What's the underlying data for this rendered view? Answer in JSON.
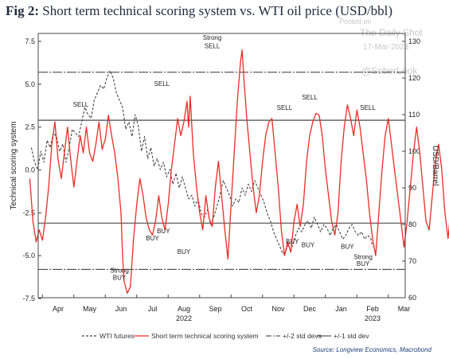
{
  "figure": {
    "label": "Fig 2:",
    "title": "Short term technical scoring system vs. WTI oil price (USD/bbl)",
    "source": "Source: Longview Economics, Macrobond"
  },
  "watermark": {
    "posted_on": "Posted on",
    "site": "The Daily Shot",
    "date": "17-Mar-2023",
    "handle": "@SoberLook"
  },
  "chart_data": {
    "type": "line",
    "ylabel_left": "Technical scoring system",
    "ylabel_right": "USD/Barrel",
    "ylim_left": [
      -7.5,
      7.5
    ],
    "yticks_left": [
      "7.5",
      "5.0",
      "2.5",
      "0.0",
      "-2.5",
      "-5.0",
      "-7.5"
    ],
    "ylim_right": [
      60,
      130
    ],
    "yticks_right": [
      "130",
      "120",
      "110",
      "100",
      "90",
      "80",
      "70",
      "60"
    ],
    "xticks": [
      "Apr",
      "May",
      "Jun",
      "Jul",
      "Aug",
      "Sep",
      "Oct",
      "Nov",
      "Dec",
      "Jan",
      "Feb",
      "Mar"
    ],
    "year_labels": [
      {
        "label": "2022",
        "under": "Aug"
      },
      {
        "label": "2023",
        "under": "Feb"
      }
    ],
    "x_unit": "month index from Mar 2022 (Apr = 1)",
    "reference_lines": [
      {
        "name": "+/-2 std devs",
        "values": [
          5.7,
          -5.8
        ],
        "style": "dash-dot"
      },
      {
        "name": "+/-1 std dev",
        "values": [
          2.9,
          -3.1
        ],
        "style": "solid"
      }
    ],
    "series": [
      {
        "name": "WTI futures",
        "axis": "right",
        "color": "#444444",
        "style": "dashed",
        "points": [
          [
            0.15,
            101
          ],
          [
            0.25,
            97
          ],
          [
            0.35,
            95
          ],
          [
            0.45,
            100
          ],
          [
            0.55,
            97
          ],
          [
            0.65,
            103
          ],
          [
            0.75,
            101
          ],
          [
            0.85,
            105
          ],
          [
            0.95,
            104
          ],
          [
            1.05,
            100
          ],
          [
            1.15,
            102
          ],
          [
            1.25,
            97
          ],
          [
            1.35,
            101
          ],
          [
            1.45,
            106
          ],
          [
            1.55,
            105
          ],
          [
            1.65,
            104
          ],
          [
            1.75,
            108
          ],
          [
            1.85,
            112
          ],
          [
            1.95,
            110
          ],
          [
            2.05,
            109
          ],
          [
            2.15,
            114
          ],
          [
            2.25,
            116
          ],
          [
            2.35,
            118
          ],
          [
            2.45,
            117
          ],
          [
            2.55,
            120
          ],
          [
            2.65,
            122
          ],
          [
            2.75,
            120
          ],
          [
            2.85,
            116
          ],
          [
            2.95,
            114
          ],
          [
            3.05,
            112
          ],
          [
            3.15,
            106
          ],
          [
            3.25,
            108
          ],
          [
            3.35,
            104
          ],
          [
            3.45,
            110
          ],
          [
            3.55,
            107
          ],
          [
            3.65,
            100
          ],
          [
            3.75,
            104
          ],
          [
            3.85,
            98
          ],
          [
            3.95,
            101
          ],
          [
            4.05,
            96
          ],
          [
            4.15,
            98
          ],
          [
            4.25,
            95
          ],
          [
            4.35,
            97
          ],
          [
            4.45,
            93
          ],
          [
            4.55,
            95
          ],
          [
            4.65,
            91
          ],
          [
            4.75,
            94
          ],
          [
            4.85,
            90
          ],
          [
            4.95,
            93
          ],
          [
            5.05,
            90
          ],
          [
            5.15,
            87
          ],
          [
            5.25,
            88
          ],
          [
            5.35,
            85
          ],
          [
            5.45,
            87
          ],
          [
            5.55,
            83
          ],
          [
            5.65,
            82
          ],
          [
            5.75,
            84
          ],
          [
            5.85,
            80
          ],
          [
            5.95,
            82
          ],
          [
            6.05,
            85
          ],
          [
            6.15,
            88
          ],
          [
            6.25,
            92
          ],
          [
            6.35,
            90
          ],
          [
            6.45,
            88
          ],
          [
            6.55,
            85
          ],
          [
            6.65,
            87
          ],
          [
            6.75,
            86
          ],
          [
            6.85,
            90
          ],
          [
            6.95,
            88
          ],
          [
            7.05,
            91
          ],
          [
            7.15,
            89
          ],
          [
            7.25,
            92
          ],
          [
            7.35,
            90
          ],
          [
            7.45,
            88
          ],
          [
            7.55,
            86
          ],
          [
            7.65,
            83
          ],
          [
            7.75,
            81
          ],
          [
            7.85,
            78
          ],
          [
            7.95,
            76
          ],
          [
            8.05,
            74
          ],
          [
            8.15,
            72
          ],
          [
            8.25,
            73
          ],
          [
            8.35,
            75
          ],
          [
            8.45,
            74
          ],
          [
            8.55,
            77
          ],
          [
            8.65,
            79
          ],
          [
            8.75,
            78
          ],
          [
            8.85,
            80
          ],
          [
            8.95,
            81
          ],
          [
            9.05,
            79
          ],
          [
            9.15,
            82
          ],
          [
            9.25,
            80
          ],
          [
            9.35,
            78
          ],
          [
            9.45,
            80
          ],
          [
            9.55,
            79
          ],
          [
            9.65,
            77
          ],
          [
            9.75,
            79
          ],
          [
            9.85,
            80
          ],
          [
            9.95,
            78
          ],
          [
            10.05,
            76
          ],
          [
            10.15,
            77
          ],
          [
            10.25,
            79
          ],
          [
            10.35,
            80
          ],
          [
            10.45,
            78
          ],
          [
            10.55,
            77
          ],
          [
            10.65,
            78
          ],
          [
            10.75,
            76
          ],
          [
            10.85,
            77
          ],
          [
            10.95,
            76
          ],
          [
            11.0,
            74
          ]
        ]
      },
      {
        "name": "Short term technical scoring system",
        "axis": "left",
        "color": "#ee2b24",
        "style": "solid",
        "points": [
          [
            0.1,
            -0.5
          ],
          [
            0.2,
            -3.0
          ],
          [
            0.3,
            -4.2
          ],
          [
            0.4,
            -3.5
          ],
          [
            0.5,
            -4.1
          ],
          [
            0.6,
            -2.8
          ],
          [
            0.7,
            -1.0
          ],
          [
            0.8,
            1.5
          ],
          [
            0.9,
            2.8
          ],
          [
            1.0,
            0.6
          ],
          [
            1.1,
            -0.5
          ],
          [
            1.2,
            1.0
          ],
          [
            1.3,
            2.5
          ],
          [
            1.4,
            0.6
          ],
          [
            1.5,
            -1.0
          ],
          [
            1.6,
            0.5
          ],
          [
            1.7,
            2.0
          ],
          [
            1.8,
            1.0
          ],
          [
            1.9,
            2.5
          ],
          [
            2.0,
            1.0
          ],
          [
            2.1,
            0.5
          ],
          [
            2.2,
            1.5
          ],
          [
            2.3,
            2.8
          ],
          [
            2.4,
            1.2
          ],
          [
            2.5,
            1.8
          ],
          [
            2.6,
            3.2
          ],
          [
            2.7,
            2.0
          ],
          [
            2.8,
            1.0
          ],
          [
            2.9,
            -0.5
          ],
          [
            3.0,
            -2.5
          ],
          [
            3.05,
            -5.0
          ],
          [
            3.1,
            -6.5
          ],
          [
            3.2,
            -7.2
          ],
          [
            3.3,
            -6.8
          ],
          [
            3.4,
            -4.0
          ],
          [
            3.5,
            -2.0
          ],
          [
            3.6,
            -0.5
          ],
          [
            3.7,
            -1.5
          ],
          [
            3.8,
            -2.8
          ],
          [
            3.9,
            -3.5
          ],
          [
            4.0,
            -3.8
          ],
          [
            4.1,
            -3.0
          ],
          [
            4.2,
            -1.5
          ],
          [
            4.3,
            -2.8
          ],
          [
            4.4,
            -3.5
          ],
          [
            4.5,
            -2.0
          ],
          [
            4.6,
            0.0
          ],
          [
            4.7,
            1.5
          ],
          [
            4.8,
            3.0
          ],
          [
            4.9,
            2.0
          ],
          [
            5.0,
            2.8
          ],
          [
            5.1,
            4.0
          ],
          [
            5.15,
            2.5
          ],
          [
            5.2,
            4.3
          ],
          [
            5.3,
            1.0
          ],
          [
            5.4,
            -1.0
          ],
          [
            5.5,
            -2.5
          ],
          [
            5.6,
            -3.5
          ],
          [
            5.7,
            -1.5
          ],
          [
            5.8,
            -2.8
          ],
          [
            5.9,
            -3.3
          ],
          [
            6.0,
            -1.0
          ],
          [
            6.1,
            0.5
          ],
          [
            6.2,
            -1.5
          ],
          [
            6.3,
            -3.5
          ],
          [
            6.4,
            -5.2
          ],
          [
            6.5,
            -2.0
          ],
          [
            6.6,
            1.0
          ],
          [
            6.7,
            4.0
          ],
          [
            6.8,
            6.3
          ],
          [
            6.85,
            7.0
          ],
          [
            6.9,
            5.5
          ],
          [
            7.0,
            3.0
          ],
          [
            7.1,
            1.0
          ],
          [
            7.2,
            -1.0
          ],
          [
            7.3,
            -2.5
          ],
          [
            7.4,
            -1.5
          ],
          [
            7.5,
            0.5
          ],
          [
            7.6,
            2.0
          ],
          [
            7.7,
            2.8
          ],
          [
            7.8,
            3.0
          ],
          [
            7.9,
            1.0
          ],
          [
            8.0,
            -1.0
          ],
          [
            8.1,
            -3.5
          ],
          [
            8.2,
            -5.0
          ],
          [
            8.3,
            -4.2
          ],
          [
            8.4,
            -4.8
          ],
          [
            8.5,
            -3.0
          ],
          [
            8.6,
            -2.0
          ],
          [
            8.7,
            -3.3
          ],
          [
            8.8,
            -2.0
          ],
          [
            8.9,
            0.5
          ],
          [
            9.0,
            2.0
          ],
          [
            9.1,
            2.8
          ],
          [
            9.2,
            3.3
          ],
          [
            9.3,
            3.2
          ],
          [
            9.4,
            2.0
          ],
          [
            9.5,
            0.0
          ],
          [
            9.6,
            -1.5
          ],
          [
            9.7,
            -3.0
          ],
          [
            9.8,
            -3.8
          ],
          [
            9.9,
            -2.5
          ],
          [
            10.0,
            0.5
          ],
          [
            10.1,
            2.5
          ],
          [
            10.2,
            3.8
          ],
          [
            10.3,
            3.0
          ],
          [
            10.4,
            2.0
          ],
          [
            10.5,
            3.5
          ],
          [
            10.6,
            2.5
          ],
          [
            10.7,
            1.0
          ],
          [
            10.8,
            -0.5
          ],
          [
            10.9,
            -2.5
          ],
          [
            11.0,
            -4.0
          ],
          [
            11.1,
            -5.0
          ],
          [
            11.2,
            -2.5
          ],
          [
            11.3,
            0.0
          ],
          [
            11.4,
            2.0
          ],
          [
            11.5,
            3.0
          ],
          [
            11.6,
            1.5
          ],
          [
            11.7,
            0.0
          ],
          [
            11.8,
            -1.5
          ],
          [
            11.9,
            -3.0
          ],
          [
            12.0,
            -4.5
          ],
          [
            12.1,
            -3.0
          ],
          [
            12.2,
            -1.0
          ],
          [
            12.3,
            1.0
          ],
          [
            12.4,
            2.5
          ],
          [
            12.5,
            1.0
          ],
          [
            12.6,
            -1.0
          ],
          [
            12.7,
            -3.0
          ],
          [
            12.8,
            -3.5
          ],
          [
            12.9,
            -1.5
          ],
          [
            13.0,
            0.5
          ],
          [
            13.1,
            1.5
          ],
          [
            13.2,
            0.0
          ],
          [
            13.3,
            -2.5
          ],
          [
            13.4,
            -4.0
          ],
          [
            13.5,
            -2.0
          ],
          [
            13.6,
            0.5
          ],
          [
            13.7,
            2.0
          ],
          [
            13.8,
            1.0
          ],
          [
            13.9,
            -1.0
          ],
          [
            14.0,
            -3.0
          ],
          [
            14.1,
            -4.5
          ],
          [
            14.2,
            -5.5
          ],
          [
            14.3,
            -4.0
          ],
          [
            14.4,
            -2.0
          ]
        ]
      }
    ],
    "annotations": [
      {
        "text": "SELL",
        "x": 1.72,
        "y": 3.7
      },
      {
        "text": "Strong",
        "x": 2.95,
        "y": -6.0
      },
      {
        "text": "BUY",
        "x": 2.95,
        "y": -6.4
      },
      {
        "text": "BUY",
        "x": 4.0,
        "y": -4.1
      },
      {
        "text": "SELL",
        "x": 4.3,
        "y": 4.9
      },
      {
        "text": "BUY",
        "x": 4.35,
        "y": -3.7
      },
      {
        "text": "BUY",
        "x": 5.0,
        "y": -4.9
      },
      {
        "text": "Strong",
        "x": 5.9,
        "y": 7.6
      },
      {
        "text": "SELL",
        "x": 5.9,
        "y": 7.1
      },
      {
        "text": "BUY",
        "x": 8.45,
        "y": -4.3
      },
      {
        "text": "BUY",
        "x": 8.95,
        "y": -4.5
      },
      {
        "text": "SELL",
        "x": 8.2,
        "y": 3.5
      },
      {
        "text": "SELL",
        "x": 9.0,
        "y": 4.1
      },
      {
        "text": "BUY",
        "x": 10.2,
        "y": -4.6
      },
      {
        "text": "SELL",
        "x": 10.85,
        "y": 3.5
      },
      {
        "text": "Strong",
        "x": 10.7,
        "y": -5.2
      },
      {
        "text": "BUY",
        "x": 10.7,
        "y": -5.6
      }
    ],
    "grid": false,
    "legend_position": "bottom"
  }
}
